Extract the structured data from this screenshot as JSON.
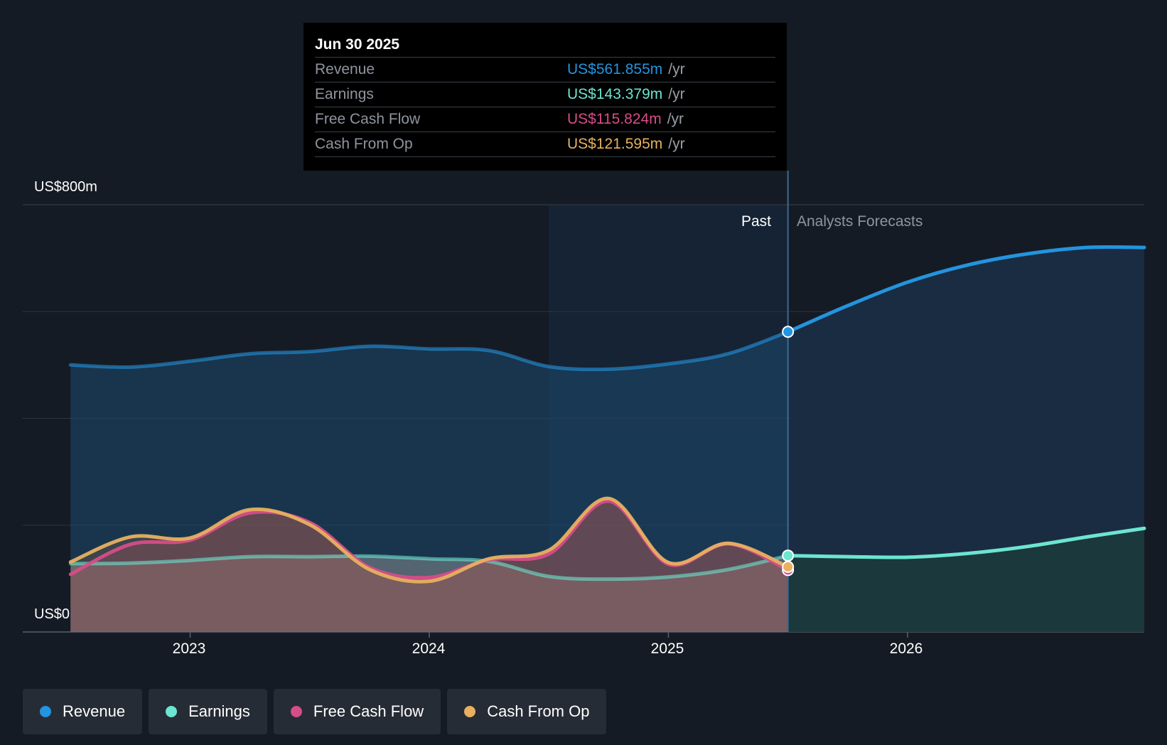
{
  "tooltip": {
    "date": "Jun 30 2025",
    "rows": [
      {
        "label": "Revenue",
        "value": "US$561.855m",
        "unit": "/yr",
        "color": "#2394df"
      },
      {
        "label": "Earnings",
        "value": "US$143.379m",
        "unit": "/yr",
        "color": "#6ce5d1"
      },
      {
        "label": "Free Cash Flow",
        "value": "US$115.824m",
        "unit": "/yr",
        "color": "#d64d88"
      },
      {
        "label": "Cash From Op",
        "value": "US$121.595m",
        "unit": "/yr",
        "color": "#e8b060"
      }
    ]
  },
  "period_labels": {
    "past": "Past",
    "forecast": "Analysts Forecasts"
  },
  "legend": [
    {
      "label": "Revenue",
      "color": "#2394df"
    },
    {
      "label": "Earnings",
      "color": "#6ce5d1"
    },
    {
      "label": "Free Cash Flow",
      "color": "#d64d88"
    },
    {
      "label": "Cash From Op",
      "color": "#e8b060"
    }
  ],
  "chart_data": {
    "type": "area",
    "y_tick_labels": {
      "top": "US$800m",
      "bottom": "US$0"
    },
    "ylim": [
      0,
      800
    ],
    "y_unit": "US$ m",
    "x_tick_labels": [
      "2023",
      "2024",
      "2025",
      "2026"
    ],
    "x_ticks": [
      2023.0,
      2024.0,
      2025.0,
      2026.0
    ],
    "xlim": [
      2022.3,
      2026.99
    ],
    "past_end": 2025.5,
    "highlight_start": 2024.5,
    "grid": true,
    "series": [
      {
        "name": "Revenue",
        "color": "#2394df",
        "x": [
          2022.5,
          2022.75,
          2023.0,
          2023.25,
          2023.5,
          2023.75,
          2024.0,
          2024.25,
          2024.5,
          2024.75,
          2025.0,
          2025.25,
          2025.5
        ],
        "y": [
          500,
          496,
          507,
          521,
          525,
          535,
          530,
          527,
          497,
          492,
          502,
          521,
          562
        ],
        "forecast_x": [
          2025.5,
          2025.75,
          2026.0,
          2026.25,
          2026.5,
          2026.75,
          2026.99
        ],
        "forecast_y": [
          562,
          611,
          655,
          687,
          708,
          720,
          720
        ]
      },
      {
        "name": "Earnings",
        "color": "#6ce5d1",
        "x": [
          2022.5,
          2022.75,
          2023.0,
          2023.25,
          2023.5,
          2023.75,
          2024.0,
          2024.25,
          2024.5,
          2024.75,
          2025.0,
          2025.25,
          2025.5
        ],
        "y": [
          128,
          129,
          134,
          141,
          141,
          142,
          137,
          132,
          104,
          99,
          103,
          117,
          143
        ],
        "forecast_x": [
          2025.5,
          2025.75,
          2026.0,
          2026.25,
          2026.5,
          2026.75,
          2026.99
        ],
        "forecast_y": [
          143,
          141,
          140,
          147,
          160,
          178,
          194
        ]
      },
      {
        "name": "Free Cash Flow",
        "color": "#d64d88",
        "x": [
          2022.5,
          2022.75,
          2023.0,
          2023.25,
          2023.5,
          2023.75,
          2024.0,
          2024.25,
          2024.5,
          2024.75,
          2025.0,
          2025.25,
          2025.5
        ],
        "y": [
          108,
          164,
          172,
          223,
          205,
          121,
          102,
          135,
          146,
          245,
          127,
          165,
          116
        ]
      },
      {
        "name": "Cash From Op",
        "color": "#e8b060",
        "x": [
          2022.5,
          2022.75,
          2023.0,
          2023.25,
          2023.5,
          2023.75,
          2024.0,
          2024.25,
          2024.5,
          2024.75,
          2025.0,
          2025.25,
          2025.5
        ],
        "y": [
          131,
          178,
          176,
          229,
          201,
          117,
          95,
          137,
          153,
          250,
          130,
          166,
          122
        ]
      }
    ]
  }
}
